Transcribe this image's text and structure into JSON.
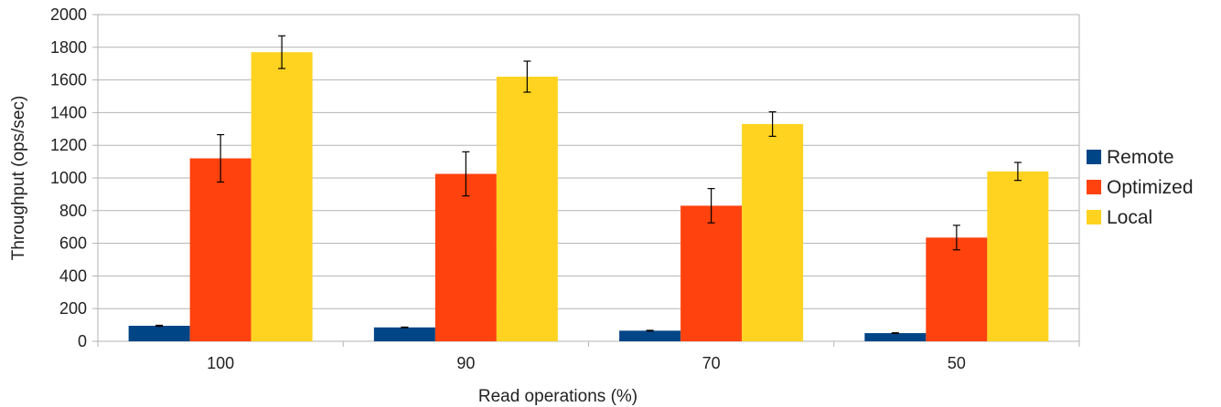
{
  "chart_data": {
    "type": "bar",
    "title": "",
    "xlabel": "Read operations (%)",
    "ylabel": "Throughput (ops/sec)",
    "categories": [
      "100",
      "90",
      "70",
      "50"
    ],
    "ylim": [
      0,
      2000
    ],
    "yticks": [
      "0",
      "200",
      "400",
      "600",
      "800",
      "1000",
      "1200",
      "1400",
      "1600",
      "1800",
      "2000"
    ],
    "grid": true,
    "legend_position": "right",
    "series": [
      {
        "name": "Remote",
        "color": "#004586",
        "values": [
          95,
          85,
          65,
          50
        ],
        "errors": [
          3,
          2,
          2,
          2
        ]
      },
      {
        "name": "Optimized",
        "color": "#ff420e",
        "values": [
          1120,
          1025,
          830,
          635
        ],
        "errors": [
          145,
          135,
          105,
          75
        ]
      },
      {
        "name": "Local",
        "color": "#ffd320",
        "values": [
          1770,
          1620,
          1330,
          1040
        ],
        "errors": [
          100,
          95,
          75,
          55
        ]
      }
    ]
  }
}
